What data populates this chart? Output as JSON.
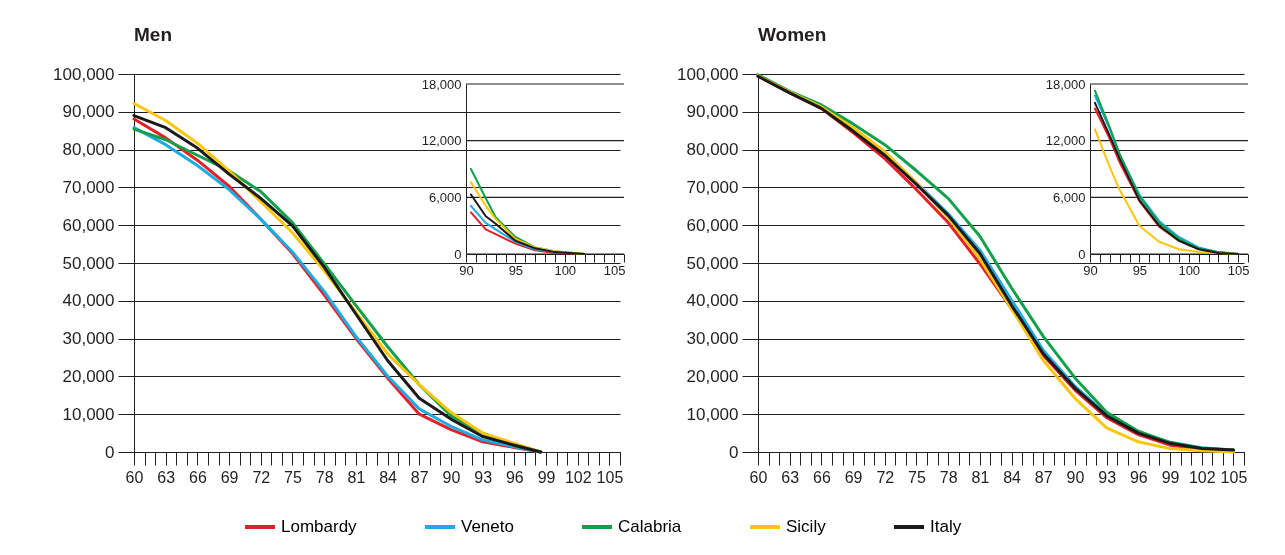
{
  "chart_data": [
    {
      "type": "line",
      "title": "Men",
      "x": [
        60,
        63,
        66,
        69,
        72,
        75,
        78,
        81,
        84,
        87,
        90,
        93,
        96,
        98.5
      ],
      "xlim": [
        60,
        106
      ],
      "ylim": [
        0,
        100000
      ],
      "grid": "y",
      "legend": "bottom",
      "xticks": [
        60,
        {
          "value": 61,
          "label": null
        },
        {
          "value": 62,
          "label": null
        },
        63,
        {
          "value": 64,
          "label": null
        },
        {
          "value": 65,
          "label": null
        },
        66,
        {
          "value": 67,
          "label": null
        },
        {
          "value": 68,
          "label": null
        },
        69,
        {
          "value": 70,
          "label": null
        },
        {
          "value": 71,
          "label": null
        },
        72,
        {
          "value": 73,
          "label": null
        },
        {
          "value": 74,
          "label": null
        },
        75,
        {
          "value": 76,
          "label": null
        },
        {
          "value": 77,
          "label": null
        },
        78,
        {
          "value": 79,
          "label": null
        },
        {
          "value": 80,
          "label": null
        },
        81,
        {
          "value": 82,
          "label": null
        },
        {
          "value": 83,
          "label": null
        },
        84,
        {
          "value": 85,
          "label": null
        },
        {
          "value": 86,
          "label": null
        },
        87,
        {
          "value": 88,
          "label": null
        },
        {
          "value": 89,
          "label": null
        },
        90,
        {
          "value": 91,
          "label": null
        },
        {
          "value": 92,
          "label": null
        },
        93,
        {
          "value": 94,
          "label": null
        },
        {
          "value": 95,
          "label": null
        },
        96,
        {
          "value": 97,
          "label": null
        },
        {
          "value": 98,
          "label": null
        },
        99,
        {
          "value": 100,
          "label": null
        },
        {
          "value": 101,
          "label": null
        },
        102,
        {
          "value": 103,
          "label": null
        },
        {
          "value": 104,
          "label": null
        },
        105,
        {
          "value": 106,
          "label": null
        }
      ],
      "yticks": [
        0,
        {
          "value": 10000,
          "label": "10,000"
        },
        {
          "value": 20000,
          "label": "20,000"
        },
        {
          "value": 30000,
          "label": "30,000"
        },
        {
          "value": 40000,
          "label": "40,000"
        },
        {
          "value": 50000,
          "label": "50,000"
        },
        {
          "value": 60000,
          "label": "60,000"
        },
        {
          "value": 70000,
          "label": "70,000"
        },
        {
          "value": 80000,
          "label": "80,000"
        },
        {
          "value": 90000,
          "label": "90,000"
        },
        {
          "value": 100000,
          "label": "100,000"
        }
      ],
      "series": [
        {
          "name": "Lombardy",
          "color": "#e32028",
          "values": [
            88100,
            83100,
            77200,
            70300,
            61600,
            52500,
            41600,
            30100,
            19600,
            10000,
            5900,
            2700,
            1200,
            0
          ]
        },
        {
          "name": "Veneto",
          "color": "#1eabe2",
          "values": [
            85800,
            81300,
            75800,
            69400,
            61600,
            52900,
            42500,
            30600,
            20100,
            11400,
            6800,
            3200,
            1400,
            0
          ]
        },
        {
          "name": "Calabria",
          "color": "#12a04b",
          "values": [
            85400,
            82600,
            78500,
            74400,
            68900,
            60700,
            49800,
            38800,
            27900,
            17800,
            9600,
            5000,
            1800,
            0
          ]
        },
        {
          "name": "Sicily",
          "color": "#fdc60c",
          "values": [
            92200,
            87700,
            81700,
            74400,
            66200,
            58000,
            48000,
            37000,
            26000,
            17800,
            10500,
            5000,
            2300,
            0
          ]
        },
        {
          "name": "Italy",
          "color": "#1a1a1a",
          "values": [
            89000,
            85800,
            80400,
            73500,
            67100,
            59800,
            48900,
            36500,
            24200,
            14200,
            8700,
            4100,
            1800,
            0
          ]
        }
      ]
    },
    {
      "type": "line",
      "x": [
        90.5,
        92,
        93,
        95,
        97,
        99,
        102
      ],
      "xlim": [
        90,
        106
      ],
      "ylim": [
        0,
        18000
      ],
      "grid": "y",
      "xticks": [
        90,
        {
          "value": 91,
          "label": null
        },
        {
          "value": 92,
          "label": null
        },
        {
          "value": 93,
          "label": null
        },
        {
          "value": 94,
          "label": null
        },
        95,
        {
          "value": 96,
          "label": null
        },
        {
          "value": 97,
          "label": null
        },
        {
          "value": 98,
          "label": null
        },
        {
          "value": 99,
          "label": null
        },
        100,
        {
          "value": 101,
          "label": null
        },
        {
          "value": 102,
          "label": null
        },
        {
          "value": 103,
          "label": null
        },
        {
          "value": 104,
          "label": null
        },
        105,
        {
          "value": 106,
          "label": null
        }
      ],
      "yticks": [
        0,
        {
          "value": 6000,
          "label": "6,000"
        },
        {
          "value": 12000,
          "label": "12,000"
        },
        {
          "value": 18000,
          "label": "18,000"
        }
      ],
      "series": [
        {
          "color": "#e32028",
          "values": [
            4400,
            2600,
            2100,
            1100,
            400,
            100,
            0
          ]
        },
        {
          "color": "#1eabe2",
          "values": [
            5100,
            3300,
            2600,
            1300,
            500,
            200,
            0
          ]
        },
        {
          "color": "#12a04b",
          "values": [
            9000,
            5900,
            3900,
            1800,
            700,
            300,
            0
          ]
        },
        {
          "color": "#fdc60c",
          "values": [
            7600,
            5100,
            3700,
            1600,
            700,
            300,
            0
          ]
        },
        {
          "color": "#1a1a1a",
          "values": [
            6300,
            4000,
            3200,
            1400,
            600,
            200,
            0
          ]
        }
      ]
    },
    {
      "type": "line",
      "title": "Women",
      "x": [
        60,
        63,
        66,
        69,
        72,
        75,
        78,
        81,
        84,
        87,
        90,
        93,
        96,
        99,
        102,
        105
      ],
      "xlim": [
        60,
        106
      ],
      "ylim": [
        0,
        100000
      ],
      "grid": "y",
      "xticks": [
        60,
        {
          "value": 61,
          "label": null
        },
        {
          "value": 62,
          "label": null
        },
        63,
        {
          "value": 64,
          "label": null
        },
        {
          "value": 65,
          "label": null
        },
        66,
        {
          "value": 67,
          "label": null
        },
        {
          "value": 68,
          "label": null
        },
        69,
        {
          "value": 70,
          "label": null
        },
        {
          "value": 71,
          "label": null
        },
        72,
        {
          "value": 73,
          "label": null
        },
        {
          "value": 74,
          "label": null
        },
        75,
        {
          "value": 76,
          "label": null
        },
        {
          "value": 77,
          "label": null
        },
        78,
        {
          "value": 79,
          "label": null
        },
        {
          "value": 80,
          "label": null
        },
        81,
        {
          "value": 82,
          "label": null
        },
        {
          "value": 83,
          "label": null
        },
        84,
        {
          "value": 85,
          "label": null
        },
        {
          "value": 86,
          "label": null
        },
        87,
        {
          "value": 88,
          "label": null
        },
        {
          "value": 89,
          "label": null
        },
        90,
        {
          "value": 91,
          "label": null
        },
        {
          "value": 92,
          "label": null
        },
        93,
        {
          "value": 94,
          "label": null
        },
        {
          "value": 95,
          "label": null
        },
        96,
        {
          "value": 97,
          "label": null
        },
        {
          "value": 98,
          "label": null
        },
        99,
        {
          "value": 100,
          "label": null
        },
        {
          "value": 101,
          "label": null
        },
        102,
        {
          "value": 103,
          "label": null
        },
        {
          "value": 104,
          "label": null
        },
        105,
        {
          "value": 106,
          "label": null
        }
      ],
      "yticks": [
        0,
        {
          "value": 10000,
          "label": "10,000"
        },
        {
          "value": 20000,
          "label": "20,000"
        },
        {
          "value": 30000,
          "label": "30,000"
        },
        {
          "value": 40000,
          "label": "40,000"
        },
        {
          "value": 50000,
          "label": "50,000"
        },
        {
          "value": 60000,
          "label": "60,000"
        },
        {
          "value": 70000,
          "label": "70,000"
        },
        {
          "value": 80000,
          "label": "80,000"
        },
        {
          "value": 90000,
          "label": "90,000"
        },
        {
          "value": 100000,
          "label": "100,000"
        }
      ],
      "series": [
        {
          "color": "#e32028",
          "values": [
            99400,
            95000,
            90900,
            84500,
            77600,
            69400,
            60700,
            49800,
            37900,
            25600,
            16400,
            9100,
            4600,
            1800,
            700,
            500
          ]
        },
        {
          "color": "#1eabe2",
          "values": [
            null,
            null,
            null,
            null,
            79000,
            71200,
            63000,
            53400,
            40200,
            26900,
            17400,
            9800,
            5200,
            2600,
            1100,
            500
          ]
        },
        {
          "color": "#12a04b",
          "values": [
            99800,
            95400,
            91800,
            86800,
            81300,
            74400,
            67100,
            57100,
            43400,
            30600,
            19600,
            10500,
            5500,
            2500,
            900,
            500
          ]
        },
        {
          "color": "#fdc60c",
          "values": [
            99500,
            95200,
            91300,
            85800,
            79500,
            71200,
            62100,
            51100,
            37900,
            24200,
            14200,
            6400,
            2700,
            900,
            300,
            0
          ]
        },
        {
          "color": "#1a1a1a",
          "values": [
            99400,
            95000,
            90900,
            84900,
            78500,
            70800,
            62600,
            52500,
            38800,
            26000,
            16900,
            9600,
            5000,
            2300,
            900,
            500
          ]
        }
      ]
    },
    {
      "type": "line",
      "x": [
        90.5,
        92,
        93,
        95,
        97,
        99,
        101,
        103,
        105
      ],
      "xlim": [
        90,
        106
      ],
      "ylim": [
        0,
        18000
      ],
      "grid": "y",
      "xticks": [
        90,
        {
          "value": 91,
          "label": null
        },
        {
          "value": 92,
          "label": null
        },
        {
          "value": 93,
          "label": null
        },
        {
          "value": 94,
          "label": null
        },
        95,
        {
          "value": 96,
          "label": null
        },
        {
          "value": 97,
          "label": null
        },
        {
          "value": 98,
          "label": null
        },
        {
          "value": 99,
          "label": null
        },
        100,
        {
          "value": 101,
          "label": null
        },
        {
          "value": 102,
          "label": null
        },
        {
          "value": 103,
          "label": null
        },
        {
          "value": 104,
          "label": null
        },
        105,
        {
          "value": 106,
          "label": null
        }
      ],
      "yticks": [
        0,
        {
          "value": 6000,
          "label": "6,000"
        },
        {
          "value": 12000,
          "label": "12,000"
        },
        {
          "value": 18000,
          "label": "18,000"
        }
      ],
      "series": [
        {
          "color": "#e32028",
          "values": [
            15400,
            12200,
            9700,
            5600,
            2900,
            1400,
            null,
            null,
            null
          ]
        },
        {
          "color": "#1eabe2",
          "values": [
            16800,
            13200,
            10500,
            6300,
            3500,
            1800,
            700,
            200,
            0
          ]
        },
        {
          "color": "#12a04b",
          "values": [
            17300,
            13400,
            10600,
            6100,
            3300,
            1600,
            600,
            200,
            0
          ]
        },
        {
          "color": "#fdc60c",
          "values": [
            13200,
            9200,
            6800,
            3000,
            1300,
            500,
            200,
            100,
            0
          ]
        },
        {
          "color": "#1a1a1a",
          "values": [
            16000,
            12500,
            10100,
            5700,
            3000,
            1400,
            500,
            100,
            0
          ]
        }
      ]
    }
  ]
}
